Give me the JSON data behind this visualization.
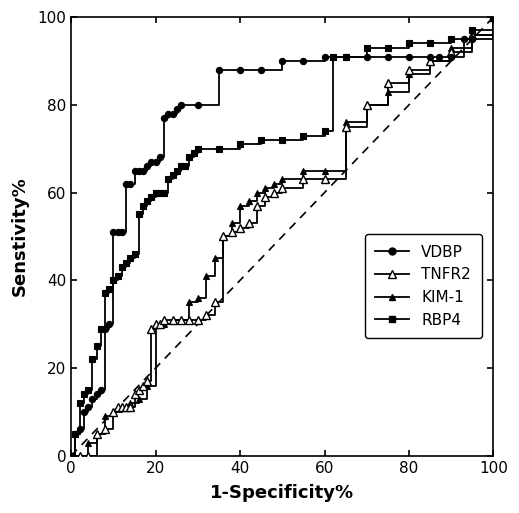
{
  "xlabel": "1-Specificity%",
  "ylabel": "Senstivity%",
  "xlim": [
    0,
    100
  ],
  "ylim": [
    0,
    100
  ],
  "xticks": [
    0,
    20,
    40,
    60,
    80,
    100
  ],
  "yticks": [
    0,
    20,
    40,
    60,
    80,
    100
  ],
  "VDBP_x": [
    0,
    1,
    2,
    3,
    4,
    5,
    6,
    7,
    8,
    9,
    10,
    11,
    12,
    13,
    14,
    15,
    16,
    17,
    18,
    19,
    20,
    21,
    22,
    23,
    24,
    25,
    26,
    30,
    35,
    40,
    45,
    50,
    55,
    60,
    65,
    70,
    75,
    80,
    85,
    87,
    90,
    93,
    95,
    100
  ],
  "VDBP_y": [
    0,
    5,
    6,
    10,
    11,
    13,
    14,
    15,
    29,
    30,
    51,
    51,
    51,
    62,
    62,
    65,
    65,
    65,
    66,
    67,
    67,
    68,
    77,
    78,
    78,
    79,
    80,
    80,
    88,
    88,
    88,
    90,
    90,
    91,
    91,
    91,
    91,
    91,
    91,
    91,
    91,
    95,
    95,
    100
  ],
  "TNFR2_x": [
    0,
    2,
    4,
    6,
    8,
    10,
    11,
    12,
    13,
    14,
    15,
    16,
    17,
    18,
    19,
    20,
    21,
    22,
    24,
    26,
    28,
    30,
    32,
    34,
    36,
    38,
    40,
    42,
    44,
    46,
    48,
    50,
    55,
    60,
    65,
    70,
    75,
    80,
    85,
    90,
    95,
    100
  ],
  "TNFR2_y": [
    0,
    0,
    0,
    5,
    6,
    10,
    11,
    11,
    11,
    11,
    14,
    15,
    16,
    17,
    29,
    30,
    30,
    31,
    31,
    31,
    31,
    31,
    32,
    35,
    50,
    51,
    52,
    53,
    57,
    59,
    60,
    61,
    63,
    63,
    75,
    80,
    85,
    88,
    90,
    92,
    96,
    100
  ],
  "KIM1_x": [
    0,
    2,
    4,
    6,
    8,
    10,
    12,
    14,
    16,
    18,
    20,
    22,
    24,
    26,
    28,
    30,
    32,
    34,
    36,
    38,
    40,
    42,
    44,
    46,
    48,
    50,
    55,
    60,
    65,
    70,
    75,
    80,
    85,
    90,
    95,
    100
  ],
  "KIM1_y": [
    0,
    0,
    3,
    5,
    9,
    10,
    11,
    12,
    13,
    16,
    30,
    30,
    31,
    31,
    35,
    36,
    41,
    45,
    50,
    53,
    57,
    58,
    60,
    61,
    62,
    63,
    65,
    65,
    76,
    80,
    83,
    87,
    90,
    93,
    96,
    100
  ],
  "RBP4_x": [
    0,
    1,
    2,
    3,
    4,
    5,
    6,
    7,
    8,
    9,
    10,
    11,
    12,
    13,
    14,
    15,
    16,
    17,
    18,
    19,
    20,
    21,
    22,
    23,
    24,
    25,
    26,
    27,
    28,
    29,
    30,
    35,
    40,
    45,
    50,
    55,
    60,
    62,
    65,
    70,
    75,
    80,
    85,
    90,
    95,
    100
  ],
  "RBP4_y": [
    0,
    5,
    12,
    14,
    15,
    22,
    25,
    29,
    37,
    38,
    40,
    41,
    43,
    44,
    45,
    46,
    55,
    57,
    58,
    59,
    60,
    60,
    60,
    63,
    64,
    65,
    66,
    66,
    68,
    69,
    70,
    70,
    71,
    72,
    72,
    73,
    74,
    91,
    91,
    93,
    93,
    94,
    94,
    95,
    97,
    100
  ],
  "legend_entries": [
    "VDBP",
    "TNFR2",
    "KIM-1",
    "RBP4"
  ]
}
